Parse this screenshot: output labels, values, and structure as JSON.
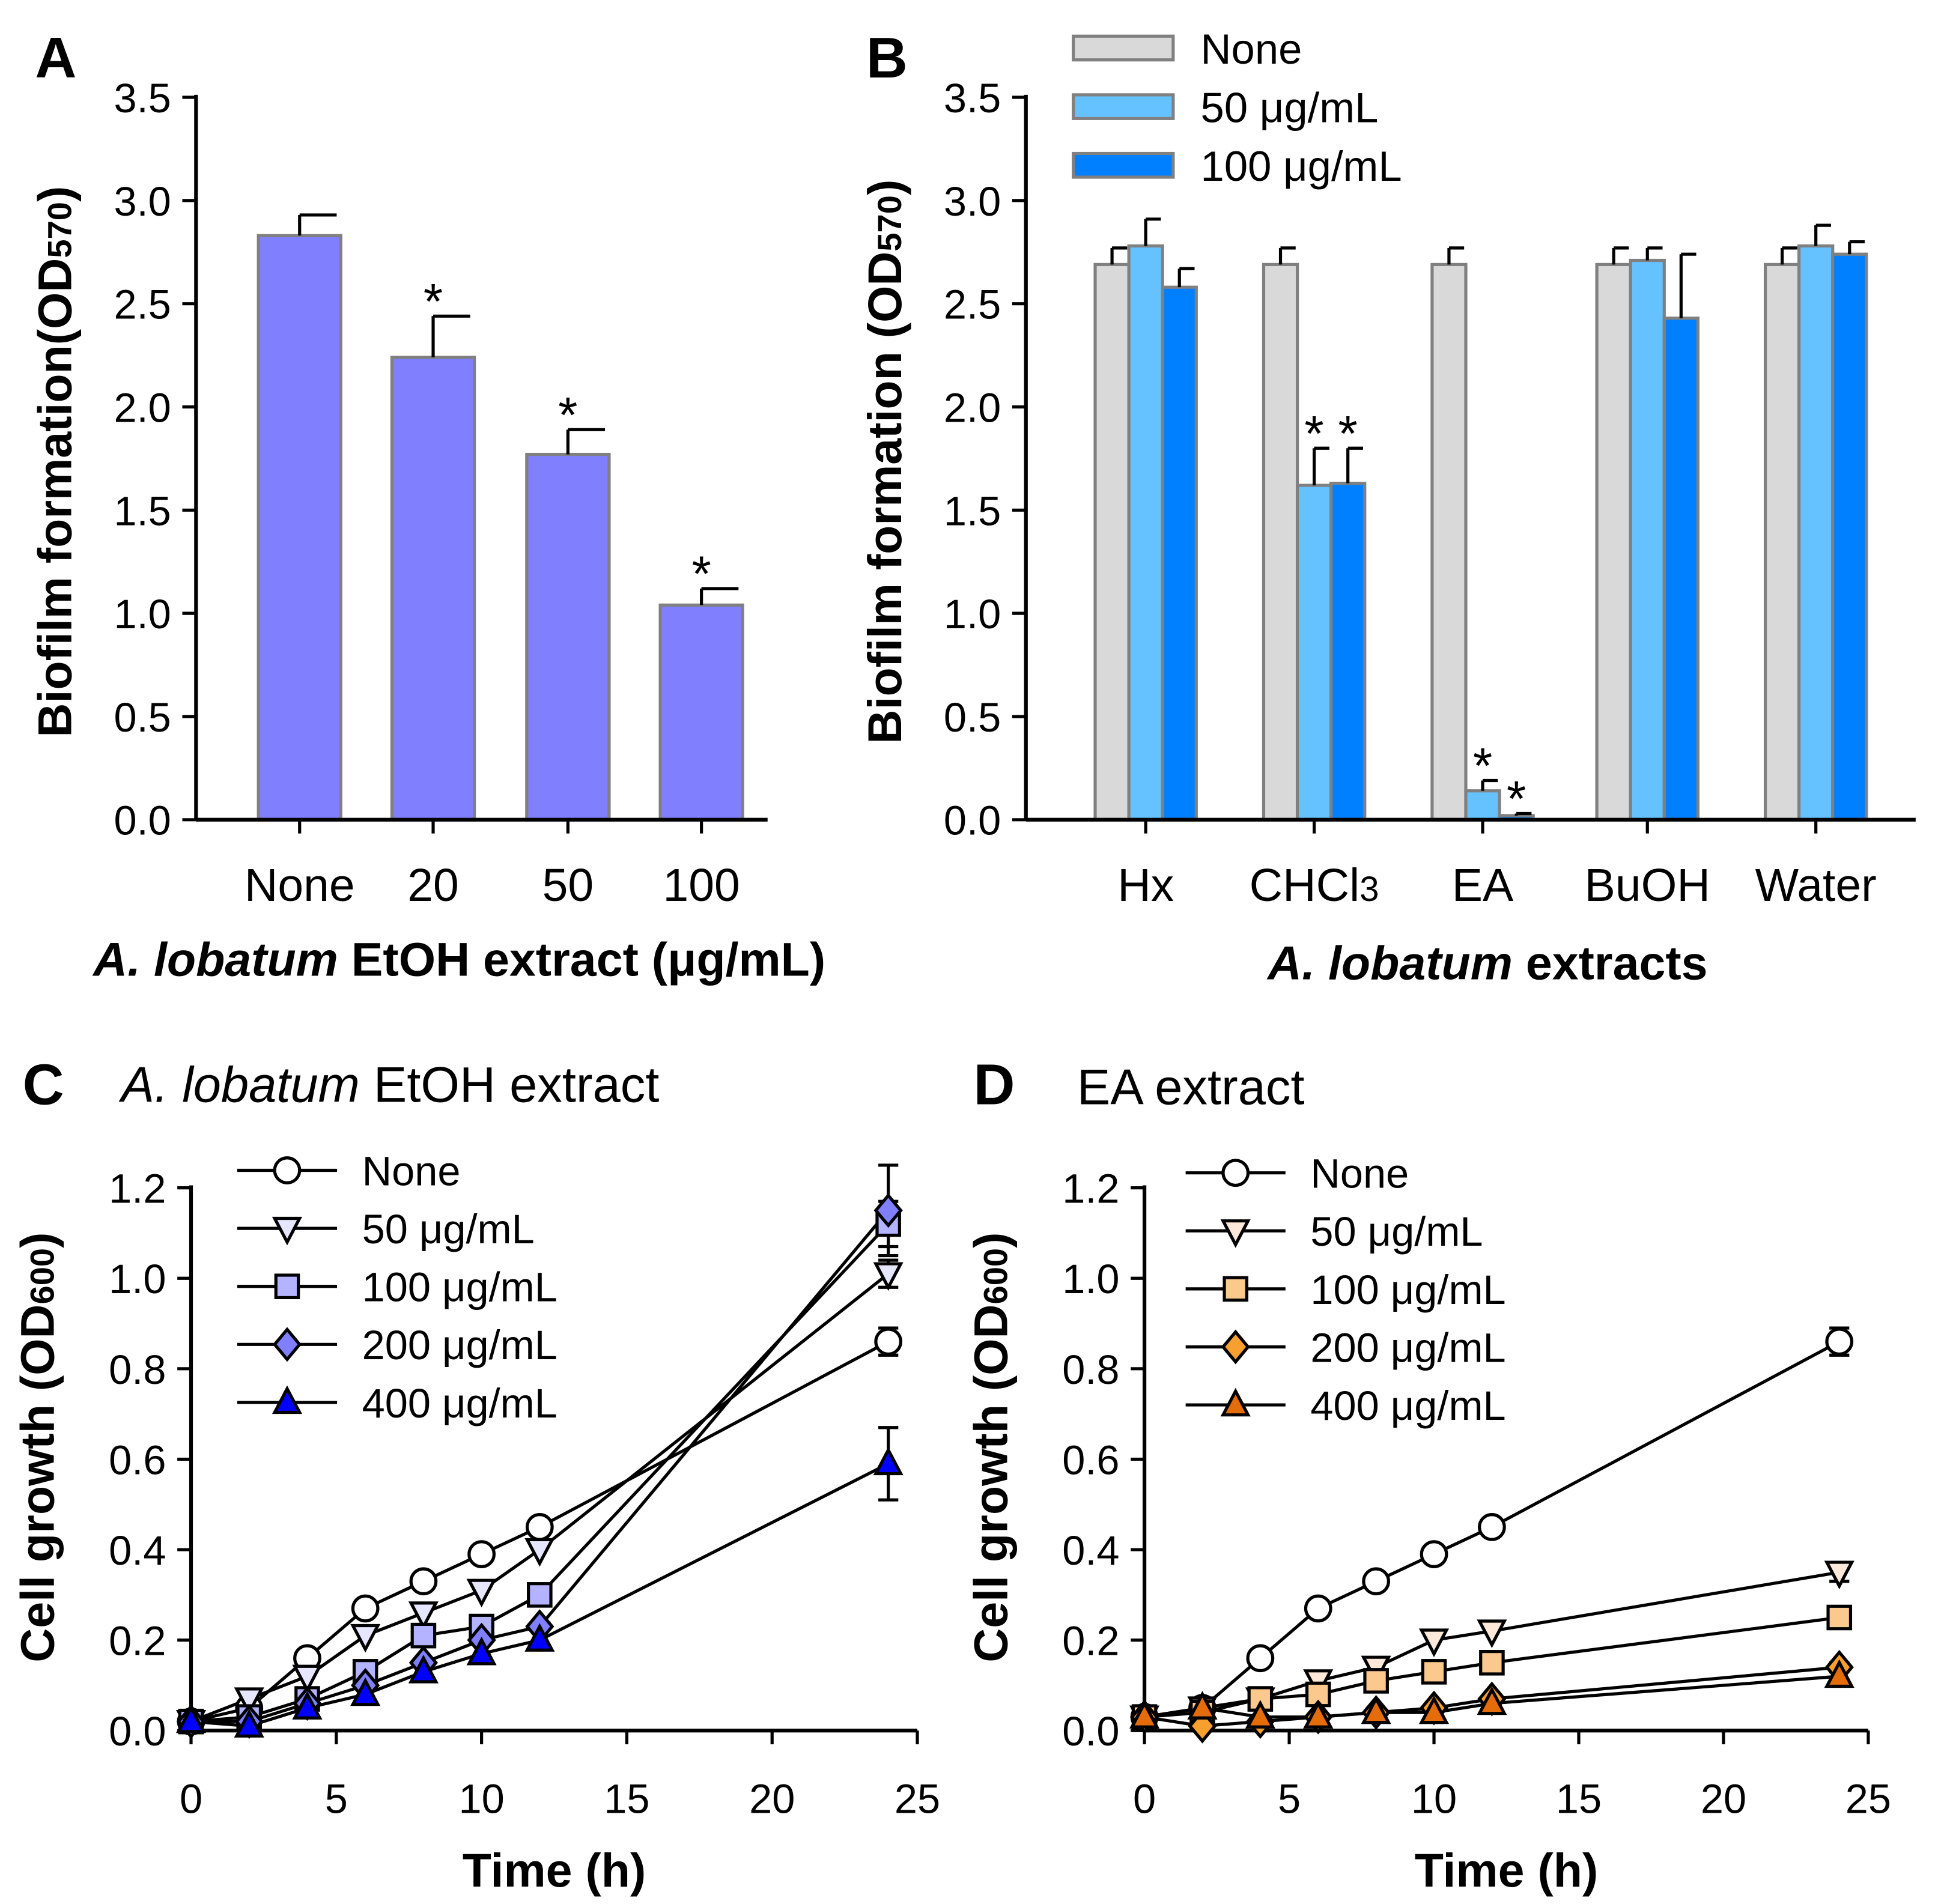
{
  "chart_data": [
    {
      "panel": "A",
      "type": "bar",
      "title": "",
      "xlabel_italic": "A. lobatum",
      "xlabel_rest": " EtOH extract (μg/mL)",
      "ylabel": "Biofilm formation(OD",
      "ylabel_sub": "570",
      "ylabel_close": ")",
      "ylim": [
        0,
        3.5
      ],
      "yticks": [
        "0.0",
        "0.5",
        "1.0",
        "1.5",
        "2.0",
        "2.5",
        "3.0",
        "3.5"
      ],
      "categories": [
        "None",
        "20",
        "50",
        "100"
      ],
      "values": [
        2.83,
        2.24,
        1.77,
        1.04
      ],
      "errors": [
        0.1,
        0.2,
        0.12,
        0.08
      ],
      "significance": [
        "",
        "*",
        "*",
        "*"
      ],
      "color": "#8080ff"
    },
    {
      "panel": "B",
      "type": "bar",
      "xlabel_italic": "A. lobatum",
      "xlabel_rest": " extracts",
      "ylabel": "Biofilm formation (OD",
      "ylabel_sub": "570",
      "ylabel_close": ")",
      "ylim": [
        0,
        3.5
      ],
      "yticks": [
        "0.0",
        "0.5",
        "1.0",
        "1.5",
        "2.0",
        "2.5",
        "3.0",
        "3.5"
      ],
      "categories": [
        "Hx",
        "CHCl3",
        "EA",
        "BuOH",
        "Water"
      ],
      "category_subscripts": [
        "",
        "3",
        "",
        "",
        ""
      ],
      "legend": "top",
      "series": [
        {
          "name": "None",
          "color": "#d9d9d9",
          "values": [
            2.69,
            2.69,
            2.69,
            2.69,
            2.69
          ],
          "errors": [
            0.08,
            0.08,
            0.08,
            0.08,
            0.08
          ],
          "significance": [
            "",
            "",
            "",
            "",
            ""
          ]
        },
        {
          "name": "50 μg/mL",
          "color": "#66c2ff",
          "values": [
            2.78,
            1.62,
            0.14,
            2.71,
            2.78
          ],
          "errors": [
            0.13,
            0.18,
            0.05,
            0.06,
            0.1
          ],
          "significance": [
            "",
            "*",
            "*",
            "",
            ""
          ]
        },
        {
          "name": "100 μg/mL",
          "color": "#0080ff",
          "values": [
            2.58,
            1.63,
            0.02,
            2.43,
            2.74
          ],
          "errors": [
            0.09,
            0.17,
            0.01,
            0.31,
            0.06
          ],
          "significance": [
            "",
            "*",
            "*",
            "",
            ""
          ]
        }
      ]
    },
    {
      "panel": "C",
      "type": "line",
      "title_italic": "A. lobatum",
      "title_rest": " EtOH extract",
      "xlabel": "Time (h)",
      "ylabel": "Cell growth (OD",
      "ylabel_sub": "600",
      "ylabel_close": ")",
      "xlim": [
        0,
        25
      ],
      "ylim": [
        0,
        1.2
      ],
      "xticks": [
        "0",
        "5",
        "10",
        "15",
        "20",
        "25"
      ],
      "yticks": [
        "0.0",
        "0.2",
        "0.4",
        "0.6",
        "0.8",
        "1.0",
        "1.2"
      ],
      "x": [
        0,
        2,
        4,
        6,
        8,
        10,
        12,
        24
      ],
      "legend": "top-left",
      "series": [
        {
          "name": "None",
          "marker": "circle",
          "color": "#ffffff",
          "values": [
            0.02,
            0.05,
            0.16,
            0.27,
            0.33,
            0.39,
            0.45,
            0.86
          ],
          "err24": 0.03
        },
        {
          "name": "50 μg/mL",
          "marker": "triangle-down",
          "color": "#e6e6ff",
          "values": [
            0.02,
            0.07,
            0.12,
            0.21,
            0.26,
            0.31,
            0.4,
            1.01
          ],
          "err24": 0.03
        },
        {
          "name": "100 μg/mL",
          "marker": "square",
          "color": "#b3b3ff",
          "values": [
            0.02,
            0.03,
            0.07,
            0.13,
            0.21,
            0.23,
            0.3,
            1.12
          ],
          "err24": 0.05
        },
        {
          "name": "200 μg/mL",
          "marker": "diamond",
          "color": "#8080ff",
          "values": [
            0.02,
            0.02,
            0.06,
            0.1,
            0.15,
            0.2,
            0.23,
            1.15
          ],
          "err24": 0.1
        },
        {
          "name": "400 μg/mL",
          "marker": "triangle-up",
          "color": "#0000ff",
          "values": [
            0.02,
            0.01,
            0.05,
            0.08,
            0.13,
            0.17,
            0.2,
            0.59
          ],
          "err24": 0.08
        }
      ]
    },
    {
      "panel": "D",
      "type": "line",
      "title_italic": "",
      "title_rest": "EA extract",
      "xlabel": "Time (h)",
      "ylabel": "Cell growth (OD",
      "ylabel_sub": "600",
      "ylabel_close": ")",
      "xlim": [
        0,
        25
      ],
      "ylim": [
        0,
        1.2
      ],
      "xticks": [
        "0",
        "5",
        "10",
        "15",
        "20",
        "25"
      ],
      "yticks": [
        "0.0",
        "0.2",
        "0.4",
        "0.6",
        "0.8",
        "1.0",
        "1.2"
      ],
      "x": [
        0,
        2,
        4,
        6,
        8,
        10,
        12,
        24
      ],
      "legend": "top-left",
      "series": [
        {
          "name": "None",
          "marker": "circle",
          "color": "#ffffff",
          "values": [
            0.03,
            0.05,
            0.16,
            0.27,
            0.33,
            0.39,
            0.45,
            0.86
          ],
          "err24": 0.03
        },
        {
          "name": "50 μg/mL",
          "marker": "triangle-down",
          "color": "#fde9d9",
          "values": [
            0.03,
            0.05,
            0.07,
            0.11,
            0.14,
            0.2,
            0.22,
            0.35
          ],
          "err24": 0.02
        },
        {
          "name": "100 μg/mL",
          "marker": "square",
          "color": "#fbc98e",
          "values": [
            0.03,
            0.04,
            0.07,
            0.08,
            0.11,
            0.13,
            0.15,
            0.25
          ],
          "err24": 0.01
        },
        {
          "name": "200 μg/mL",
          "marker": "diamond",
          "color": "#f7a030",
          "values": [
            0.03,
            0.01,
            0.02,
            0.03,
            0.04,
            0.05,
            0.07,
            0.14
          ],
          "err24": 0.01
        },
        {
          "name": "400 μg/mL",
          "marker": "triangle-up",
          "color": "#e46c0a",
          "values": [
            0.03,
            0.05,
            0.03,
            0.03,
            0.04,
            0.04,
            0.06,
            0.12
          ],
          "err24": 0.01
        }
      ]
    }
  ]
}
